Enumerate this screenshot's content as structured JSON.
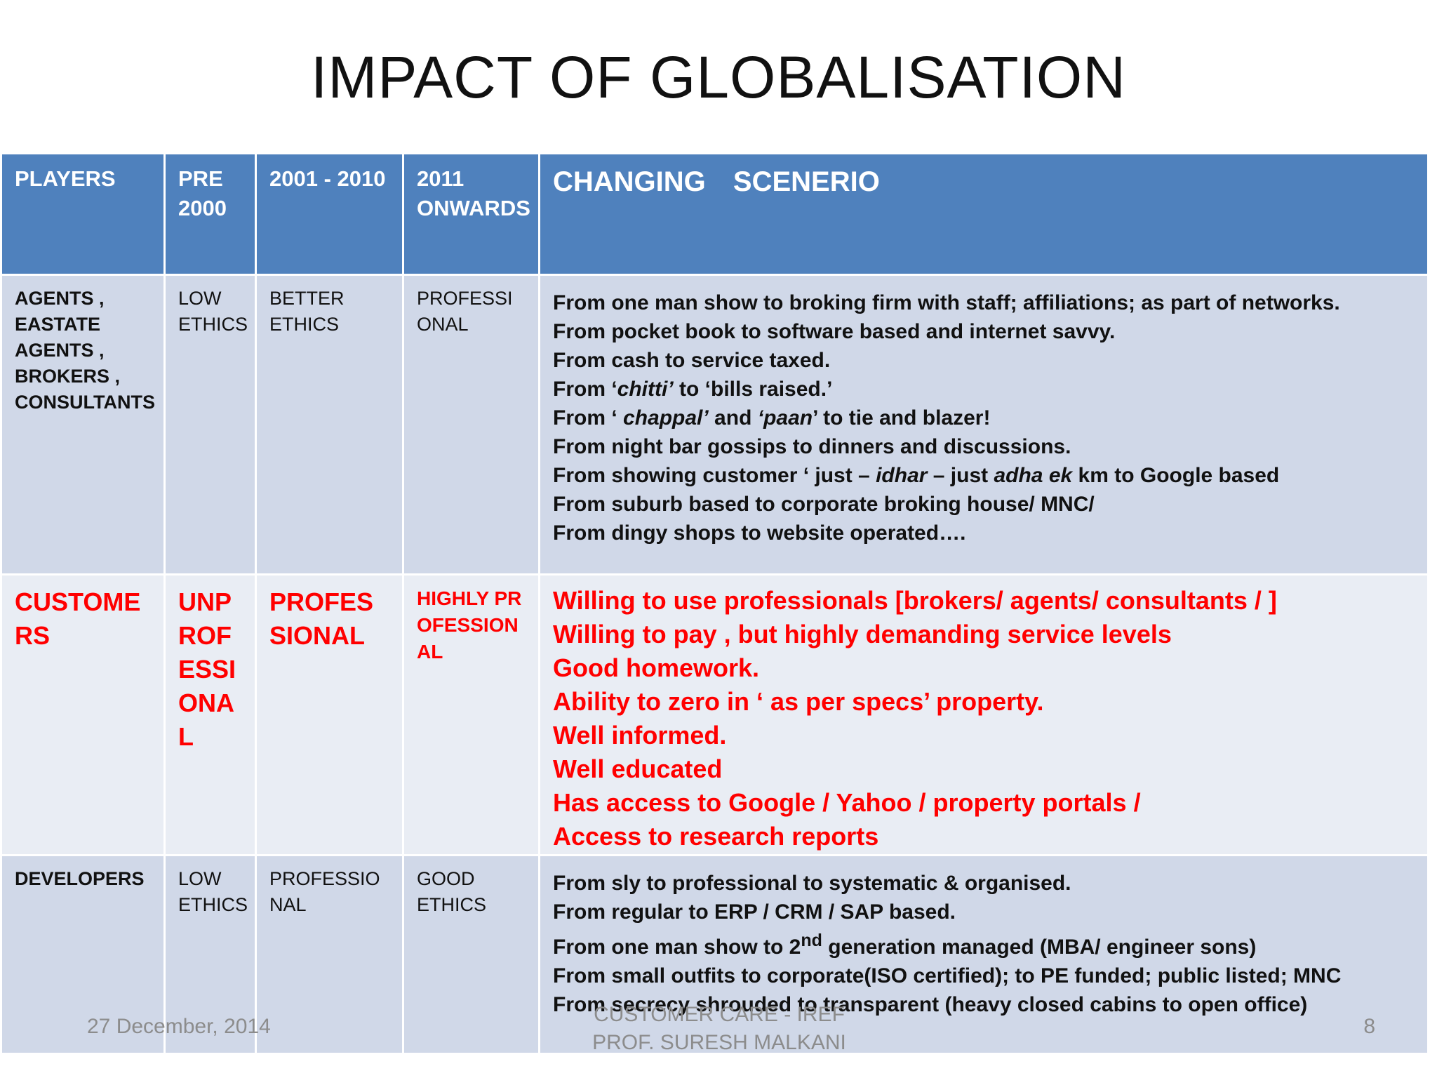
{
  "slide": {
    "title": "IMPACT OF GLOBALISATION"
  },
  "table": {
    "headers": {
      "players": "PLAYERS",
      "pre2000": "PRE 2000",
      "y2001_2010": "2001 - 2010",
      "y2011": "2011 ONWARDS",
      "scenario": "CHANGING SCENERIO"
    },
    "agents": {
      "player": "AGENTS , EASTATE AGENTS , BROKERS , CONSULTANTS",
      "pre2000": "LOW ETHICS",
      "y2001_2010": "BETTER ETHICS",
      "y2011": "PROFESSIONAL",
      "scenario": {
        "l1": "From one man show to broking firm with staff; affiliations; as part of networks.",
        "l2": "From pocket book to software based and internet savvy.",
        "l3": "From cash to service taxed.",
        "l4a": "From ‘",
        "l4b": "chitti’",
        "l4c": " to ‘bills raised.’",
        "l5a": "From ‘ ",
        "l5b": "chappal’",
        "l5c": " and ",
        "l5d": "‘paan",
        "l5e": "’ to tie and blazer!",
        "l6": "From night bar gossips to dinners and discussions.",
        "l7a": "From showing customer ‘ just – ",
        "l7b": "idhar",
        "l7c": " – just ",
        "l7d": "adha ek",
        "l7e": " km to Google based",
        "l8": "From suburb based to corporate broking house/ MNC/",
        "l9": "From dingy shops to website operated…."
      }
    },
    "customers": {
      "player": "CUSTOMERS",
      "pre2000": "UNPROFESSIONAL",
      "y2001_2010": "PROFESSIONAL",
      "y2011": "HIGHLY PROFESSIONAL",
      "scenario": {
        "l1": "Willing to use professionals [brokers/ agents/ consultants / ]",
        "l2": "Willing to pay , but highly demanding service levels",
        "l3": "Good homework.",
        "l4": "Ability to zero in ‘ as per specs’ property.",
        "l5": "Well informed.",
        "l6": "Well educated",
        "l7": "Has access to Google / Yahoo / property portals /",
        "l8": "Access to research reports"
      }
    },
    "developers": {
      "player": "DEVELOPERS",
      "pre2000": "LOW ETHICS",
      "y2001_2010": "PROFESSIONAL",
      "y2011": "GOOD ETHICS",
      "scenario": {
        "l1": "From sly to professional to systematic & organised.",
        "l2": "From regular to ERP / CRM / SAP based.",
        "l3a": "From one man show to 2",
        "l3sup": "nd",
        "l3b": " generation managed (MBA/ engineer sons)",
        "l4": "From small outfits to corporate(ISO certified); to PE funded; public listed; MNC",
        "l5": "From secrecy shrouded to transparent (heavy closed cabins to open office)"
      }
    }
  },
  "footer": {
    "date": "27 December, 2014",
    "center_line1": "CUSTOMER CARE - IREF",
    "center_line2": "PROF. SURESH MALKANI",
    "page": "8"
  },
  "colors": {
    "header_bg": "#4f81bd",
    "row_band_dark": "#d0d8e8",
    "row_band_light": "#e9edf4",
    "highlight_text": "#ff0000"
  }
}
